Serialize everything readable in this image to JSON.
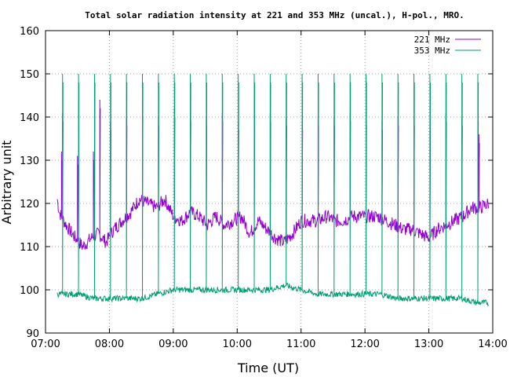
{
  "chart_data": {
    "type": "line",
    "title": "Total solar radiation intensity at 221 and 353 MHz (uncal.), H-pol., MRO.",
    "xlabel": "Time (UT)",
    "ylabel": "Arbitrary unit",
    "xlim": [
      "07:00",
      "14:00"
    ],
    "ylim": [
      90,
      160
    ],
    "x_ticks": [
      "07:00",
      "08:00",
      "09:00",
      "10:00",
      "11:00",
      "12:00",
      "13:00",
      "14:00"
    ],
    "y_ticks": [
      90,
      100,
      110,
      120,
      130,
      140,
      150,
      160
    ],
    "grid": true,
    "legend_position": "top-right",
    "series": [
      {
        "name": "221 MHz",
        "color": "#9400d3",
        "baseline": [
          [
            "07:11",
            121
          ],
          [
            "07:13",
            118
          ],
          [
            "07:17",
            116
          ],
          [
            "07:22",
            114
          ],
          [
            "07:28",
            112
          ],
          [
            "07:35",
            110
          ],
          [
            "07:43",
            112
          ],
          [
            "07:50",
            113
          ],
          [
            "07:57",
            111
          ],
          [
            "08:04",
            114
          ],
          [
            "08:12",
            116
          ],
          [
            "08:20",
            118
          ],
          [
            "08:28",
            121
          ],
          [
            "08:36",
            120
          ],
          [
            "08:44",
            119
          ],
          [
            "08:52",
            121
          ],
          [
            "09:00",
            117
          ],
          [
            "09:08",
            116
          ],
          [
            "09:16",
            118
          ],
          [
            "09:24",
            117
          ],
          [
            "09:32",
            115
          ],
          [
            "09:40",
            117
          ],
          [
            "09:48",
            115
          ],
          [
            "09:56",
            116
          ],
          [
            "10:04",
            117
          ],
          [
            "10:12",
            113
          ],
          [
            "10:20",
            116
          ],
          [
            "10:28",
            114
          ],
          [
            "10:36",
            112
          ],
          [
            "10:44",
            111
          ],
          [
            "10:52",
            113
          ],
          [
            "11:00",
            116
          ],
          [
            "11:08",
            116
          ],
          [
            "11:16",
            116
          ],
          [
            "11:24",
            117
          ],
          [
            "11:32",
            116
          ],
          [
            "11:40",
            116
          ],
          [
            "11:48",
            117
          ],
          [
            "11:56",
            117
          ],
          [
            "12:04",
            117
          ],
          [
            "12:12",
            117
          ],
          [
            "12:20",
            116
          ],
          [
            "12:28",
            115
          ],
          [
            "12:36",
            114
          ],
          [
            "12:44",
            114
          ],
          [
            "12:52",
            113
          ],
          [
            "13:00",
            112
          ],
          [
            "13:08",
            114
          ],
          [
            "13:16",
            115
          ],
          [
            "13:24",
            116
          ],
          [
            "13:32",
            117
          ],
          [
            "13:40",
            119
          ],
          [
            "13:48",
            119
          ],
          [
            "13:56",
            120
          ]
        ],
        "spikes": [
          [
            "07:15",
            132
          ],
          [
            "07:16",
            141
          ],
          [
            "07:30",
            131
          ],
          [
            "07:45",
            132
          ],
          [
            "07:51",
            144
          ],
          [
            "08:01",
            139
          ],
          [
            "08:16",
            140
          ],
          [
            "08:31",
            142
          ],
          [
            "08:46",
            140
          ],
          [
            "09:01",
            142
          ],
          [
            "09:16",
            141
          ],
          [
            "09:31",
            140
          ],
          [
            "09:46",
            141
          ],
          [
            "10:01",
            139
          ],
          [
            "10:16",
            140
          ],
          [
            "10:31",
            141
          ],
          [
            "10:46",
            140
          ],
          [
            "11:01",
            139
          ],
          [
            "11:16",
            140
          ],
          [
            "11:31",
            140
          ],
          [
            "11:46",
            141
          ],
          [
            "12:01",
            140
          ],
          [
            "12:16",
            139
          ],
          [
            "12:31",
            140
          ],
          [
            "12:46",
            140
          ],
          [
            "13:01",
            139
          ],
          [
            "13:16",
            141
          ],
          [
            "13:31",
            140
          ],
          [
            "13:46",
            141
          ],
          [
            "13:47",
            136
          ]
        ]
      },
      {
        "name": "353 MHz",
        "color": "#009e73",
        "baseline": [
          [
            "07:11",
            99
          ],
          [
            "07:30",
            99
          ],
          [
            "07:45",
            98
          ],
          [
            "08:00",
            98
          ],
          [
            "08:15",
            98
          ],
          [
            "08:30",
            98
          ],
          [
            "08:45",
            99
          ],
          [
            "09:00",
            100
          ],
          [
            "09:15",
            100
          ],
          [
            "09:30",
            100
          ],
          [
            "09:45",
            100
          ],
          [
            "10:00",
            100
          ],
          [
            "10:15",
            100
          ],
          [
            "10:30",
            100
          ],
          [
            "10:45",
            101
          ],
          [
            "11:00",
            100
          ],
          [
            "11:15",
            99
          ],
          [
            "11:30",
            99
          ],
          [
            "11:45",
            99
          ],
          [
            "12:00",
            99
          ],
          [
            "12:15",
            99
          ],
          [
            "12:30",
            98
          ],
          [
            "12:45",
            98
          ],
          [
            "13:00",
            98
          ],
          [
            "13:15",
            98
          ],
          [
            "13:30",
            98
          ],
          [
            "13:45",
            97
          ],
          [
            "13:56",
            97
          ]
        ],
        "spikes": [
          [
            "07:16",
            150
          ],
          [
            "07:31",
            150
          ],
          [
            "07:46",
            150
          ],
          [
            "08:01",
            150
          ],
          [
            "08:16",
            150
          ],
          [
            "08:31",
            150
          ],
          [
            "08:46",
            150
          ],
          [
            "09:01",
            150
          ],
          [
            "09:16",
            150
          ],
          [
            "09:31",
            150
          ],
          [
            "09:46",
            150
          ],
          [
            "10:01",
            150
          ],
          [
            "10:16",
            150
          ],
          [
            "10:31",
            150
          ],
          [
            "10:46",
            150
          ],
          [
            "11:01",
            150
          ],
          [
            "11:16",
            150
          ],
          [
            "11:31",
            150
          ],
          [
            "11:46",
            150
          ],
          [
            "12:01",
            150
          ],
          [
            "12:16",
            150
          ],
          [
            "12:31",
            150
          ],
          [
            "12:46",
            150
          ],
          [
            "13:01",
            150
          ],
          [
            "13:16",
            150
          ],
          [
            "13:31",
            150
          ],
          [
            "13:46",
            150
          ]
        ]
      }
    ]
  }
}
